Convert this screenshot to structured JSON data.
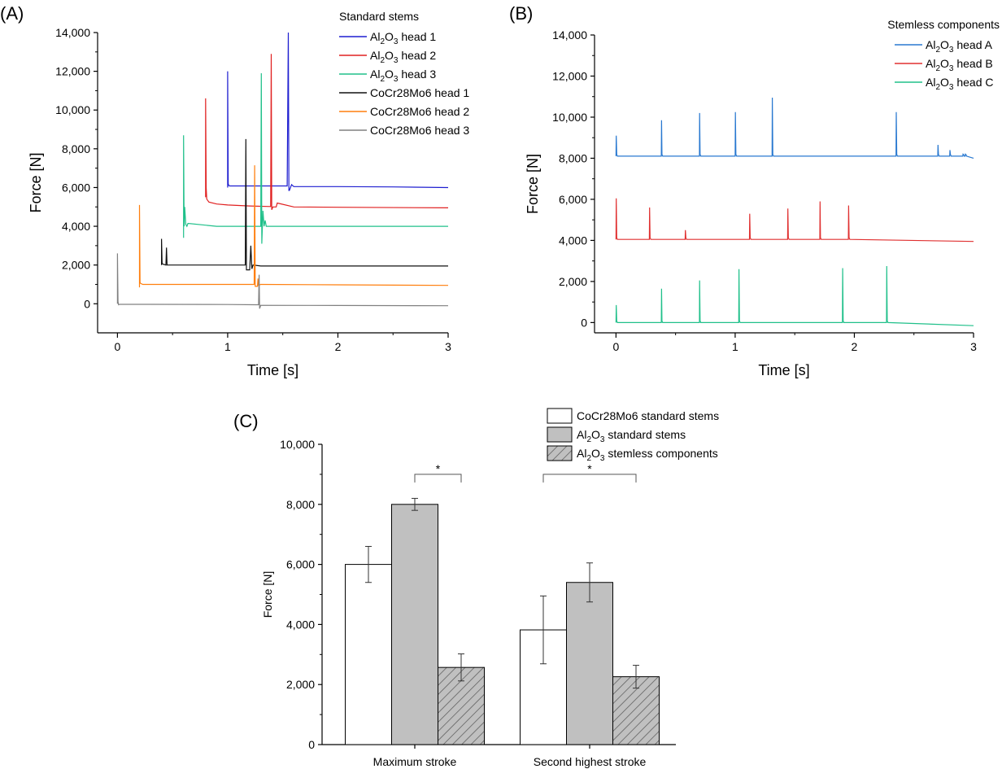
{
  "chart_data": [
    {
      "panel": "(A)",
      "type": "line",
      "xlabel": "Time [s]",
      "ylabel": "Force [N]",
      "xlim": [
        -0.18,
        3
      ],
      "ylim": [
        -1500,
        14000
      ],
      "xticks": [
        0,
        1,
        2,
        3
      ],
      "xtick_labels": [
        "0",
        "1",
        "2",
        "3"
      ],
      "yticks": [
        0,
        2000,
        4000,
        6000,
        8000,
        10000,
        12000,
        14000
      ],
      "ytick_labels": [
        "0",
        "2,000",
        "4,000",
        "6,000",
        "8,000",
        "10,000",
        "12,000",
        "14,000"
      ],
      "legend_title": "Standard stems",
      "legend_position": "top-right",
      "series": [
        {
          "name": "Al2O3 head 1",
          "label_parts": [
            "Al",
            "2",
            "O",
            "3",
            " head 1"
          ],
          "color": "#1f1fd0",
          "x": [
            1.0,
            1.0,
            1.005,
            1.01,
            1.02,
            1.05,
            1.3,
            1.5,
            1.54,
            1.55,
            1.555,
            1.56,
            1.58,
            1.6,
            2.0,
            2.5,
            3.0
          ],
          "y": [
            6000,
            12000,
            6200,
            6100,
            6080,
            6080,
            6080,
            6080,
            6080,
            14000,
            5850,
            5850,
            6150,
            6050,
            6050,
            6030,
            6000
          ]
        },
        {
          "name": "Al2O3 head 2",
          "label_parts": [
            "Al",
            "2",
            "O",
            "3",
            " head 2"
          ],
          "color": "#e02020",
          "x": [
            0.8,
            0.8,
            0.805,
            0.81,
            0.83,
            0.9,
            1.0,
            1.2,
            1.39,
            1.395,
            1.4,
            1.41,
            1.44,
            1.45,
            1.6,
            2.0,
            3.0
          ],
          "y": [
            5500,
            10600,
            6000,
            5400,
            5250,
            5150,
            5100,
            5050,
            5020,
            12900,
            4850,
            5000,
            5000,
            5200,
            5000,
            4980,
            4950
          ]
        },
        {
          "name": "Al2O3 head 3",
          "label_parts": [
            "Al",
            "2",
            "O",
            "3",
            " head 3"
          ],
          "color": "#20c08a",
          "x": [
            0.6,
            0.6,
            0.605,
            0.61,
            0.62,
            0.63,
            0.64,
            0.9,
            1.25,
            1.3,
            1.305,
            1.31,
            1.32,
            1.33,
            1.34,
            1.35,
            2.0,
            3.0
          ],
          "y": [
            3400,
            8700,
            4000,
            5000,
            4100,
            4000,
            4150,
            4000,
            4000,
            4000,
            11900,
            3100,
            4800,
            4000,
            4300,
            4000,
            4000,
            4000
          ]
        },
        {
          "name": "CoCr28Mo6 head 1",
          "label_parts": [
            "CoCr28Mo6 head 1"
          ],
          "color": "#111111",
          "x": [
            0.4,
            0.4,
            0.405,
            0.41,
            0.44,
            0.445,
            0.45,
            0.6,
            1.0,
            1.15,
            1.16,
            1.165,
            1.17,
            1.2,
            1.21,
            1.22,
            1.23,
            1.3,
            2.0,
            3.0
          ],
          "y": [
            2000,
            3350,
            2100,
            2050,
            2000,
            2900,
            2000,
            2000,
            2000,
            2000,
            2000,
            8500,
            1750,
            1750,
            3000,
            1800,
            2000,
            1950,
            1950,
            1950
          ]
        },
        {
          "name": "CoCr28Mo6 head 2",
          "label_parts": [
            "CoCr28Mo6 head 2"
          ],
          "color": "#ff7f0e",
          "x": [
            0.2,
            0.2,
            0.205,
            0.21,
            0.23,
            0.5,
            1.0,
            1.2,
            1.24,
            1.245,
            1.25,
            1.27,
            1.275,
            1.28,
            1.3,
            2.0,
            3.0
          ],
          "y": [
            850,
            5100,
            1100,
            1050,
            1000,
            1000,
            1000,
            1000,
            1000,
            7150,
            900,
            900,
            1300,
            950,
            1000,
            980,
            950
          ]
        },
        {
          "name": "CoCr28Mo6 head 3",
          "label_parts": [
            "CoCr28Mo6 head 3"
          ],
          "color": "#808080",
          "x": [
            0.0,
            0.0,
            0.005,
            0.01,
            0.02,
            0.3,
            1.0,
            1.25,
            1.28,
            1.285,
            1.29,
            1.3,
            2.0,
            3.0
          ],
          "y": [
            0,
            2600,
            100,
            -50,
            -30,
            -30,
            -40,
            -50,
            -50,
            1500,
            -250,
            -80,
            -90,
            -100
          ]
        }
      ]
    },
    {
      "panel": "(B)",
      "type": "line",
      "xlabel": "Time [s]",
      "ylabel": "Force [N]",
      "xlim": [
        -0.18,
        3
      ],
      "ylim": [
        -500,
        14000
      ],
      "xticks": [
        0,
        1,
        2,
        3
      ],
      "xtick_labels": [
        "0",
        "1",
        "2",
        "3"
      ],
      "yticks": [
        0,
        2000,
        4000,
        6000,
        8000,
        10000,
        12000,
        14000
      ],
      "ytick_labels": [
        "0",
        "2,000",
        "4,000",
        "6,000",
        "8,000",
        "10,000",
        "12,000",
        "14,000"
      ],
      "legend_title": "Stemless components",
      "legend_position": "top-right",
      "series": [
        {
          "name": "Al2O3 head A",
          "label_parts": [
            "Al",
            "2",
            "O",
            "3",
            " head A"
          ],
          "color": "#2878d0",
          "base": 8100,
          "end": 8000,
          "spikes": [
            [
              0.0,
              9100
            ],
            [
              0.38,
              9850
            ],
            [
              0.7,
              10200
            ],
            [
              1.0,
              10250
            ],
            [
              1.31,
              10950
            ],
            [
              2.35,
              10250
            ],
            [
              2.7,
              8650
            ],
            [
              2.8,
              8400
            ],
            [
              2.91,
              8200
            ],
            [
              2.93,
              8200
            ]
          ]
        },
        {
          "name": "Al2O3 head B",
          "label_parts": [
            "Al",
            "2",
            "O",
            "3",
            " head B"
          ],
          "color": "#e03030",
          "base": 4050,
          "end": 3950,
          "spikes": [
            [
              0.0,
              6050
            ],
            [
              0.28,
              5600
            ],
            [
              0.58,
              4500
            ],
            [
              1.12,
              5300
            ],
            [
              1.44,
              5550
            ],
            [
              1.71,
              5900
            ],
            [
              1.95,
              5700
            ]
          ]
        },
        {
          "name": "Al2O3 head C",
          "label_parts": [
            "Al",
            "2",
            "O",
            "3",
            " head C"
          ],
          "color": "#20c08a",
          "base": 0,
          "end": -150,
          "spikes": [
            [
              0.0,
              850
            ],
            [
              0.38,
              1650
            ],
            [
              0.7,
              2050
            ],
            [
              1.03,
              2600
            ],
            [
              1.9,
              2650
            ],
            [
              2.27,
              2750
            ]
          ]
        }
      ]
    },
    {
      "panel": "(C)",
      "type": "bar",
      "ylabel": "Force [N]",
      "ylim": [
        0,
        10000
      ],
      "yticks": [
        0,
        2000,
        4000,
        6000,
        8000,
        10000
      ],
      "ytick_labels": [
        "0",
        "2,000",
        "4,000",
        "6,000",
        "8,000",
        "10,000"
      ],
      "categories": [
        "Maximum stroke",
        "Second highest stroke"
      ],
      "legend_position": "top",
      "series": [
        {
          "name": "CoCr28Mo6 standard stems",
          "label_parts": [
            "CoCr28Mo6 standard stems"
          ],
          "fill": "#ffffff",
          "pattern": "none",
          "values": [
            6000,
            3820
          ],
          "errors": [
            600,
            1130
          ]
        },
        {
          "name": "Al2O3 standard stems",
          "label_parts": [
            "Al",
            "2",
            "O",
            "3",
            " standard stems"
          ],
          "fill": "#c0c0c0",
          "pattern": "none",
          "values": [
            8000,
            5400
          ],
          "errors": [
            200,
            650
          ]
        },
        {
          "name": "Al2O3 stemless components",
          "label_parts": [
            "Al",
            "2",
            "O",
            "3",
            " stemless components"
          ],
          "fill": "#c0c0c0",
          "pattern": "hatch",
          "values": [
            2570,
            2260
          ],
          "errors": [
            450,
            380
          ]
        }
      ],
      "significance": [
        {
          "category": 0,
          "from_series": 1,
          "to_series": 2,
          "label": "*"
        },
        {
          "category": 1,
          "from_series": 0,
          "to_series": 2,
          "label": "*"
        }
      ]
    }
  ]
}
